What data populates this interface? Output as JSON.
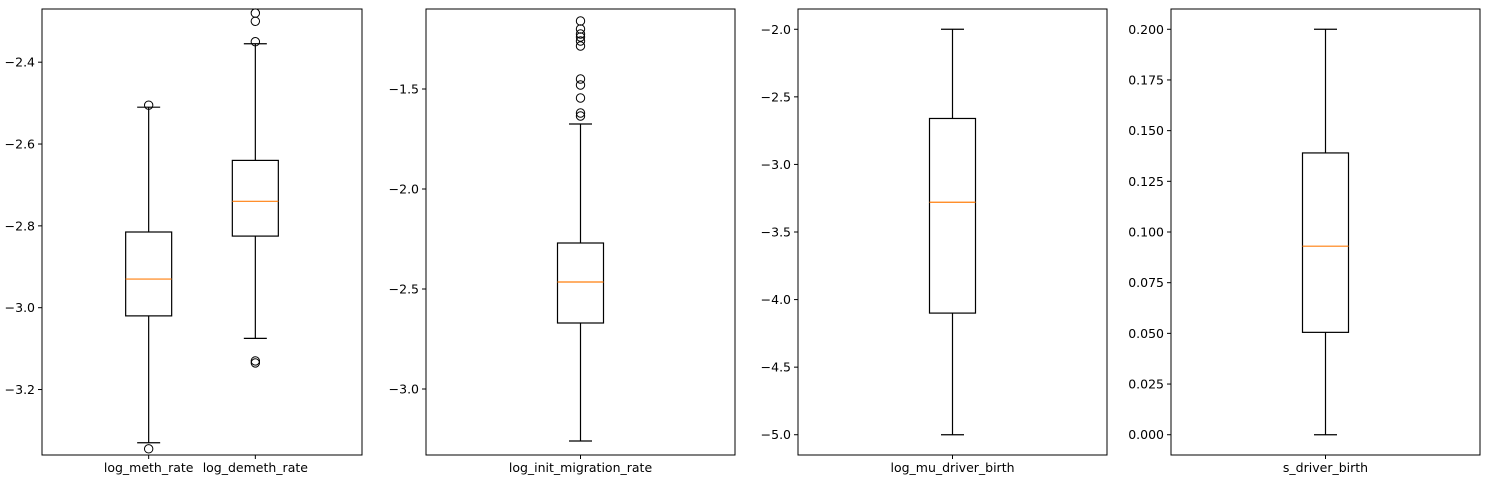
{
  "chart_data": [
    {
      "type": "box",
      "categories": [
        "log_meth_rate",
        "log_demeth_rate"
      ],
      "ylim": [
        -3.36,
        -2.27
      ],
      "yticks": [
        -3.2,
        -3.0,
        -2.8,
        -2.6,
        -2.4
      ],
      "ytick_labels": [
        "−3.2",
        "−3.0",
        "−2.8",
        "−2.6",
        "−2.4"
      ],
      "boxes": [
        {
          "whisker_low": -3.33,
          "q1": -3.02,
          "median": -2.93,
          "q3": -2.815,
          "whisker_high": -2.51,
          "outliers": [
            -3.345,
            -2.505
          ]
        },
        {
          "whisker_low": -3.075,
          "q1": -2.825,
          "median": -2.74,
          "q3": -2.64,
          "whisker_high": -2.355,
          "outliers": [
            -3.13,
            -3.135,
            -2.35,
            -2.3,
            -2.28
          ]
        }
      ]
    },
    {
      "type": "box",
      "categories": [
        "log_init_migration_rate"
      ],
      "ylim": [
        -3.33,
        -1.1
      ],
      "yticks": [
        -3.0,
        -2.5,
        -2.0,
        -1.5
      ],
      "ytick_labels": [
        "−3.0",
        "−2.5",
        "−2.0",
        "−1.5"
      ],
      "boxes": [
        {
          "whisker_low": -3.26,
          "q1": -2.67,
          "median": -2.465,
          "q3": -2.27,
          "whisker_high": -1.675,
          "outliers": [
            -1.635,
            -1.62,
            -1.545,
            -1.48,
            -1.45,
            -1.285,
            -1.26,
            -1.24,
            -1.225,
            -1.2,
            -1.16
          ]
        }
      ]
    },
    {
      "type": "box",
      "categories": [
        "log_mu_driver_birth"
      ],
      "ylim": [
        -5.15,
        -1.85
      ],
      "yticks": [
        -5.0,
        -4.5,
        -4.0,
        -3.5,
        -3.0,
        -2.5,
        -2.0
      ],
      "ytick_labels": [
        "−5.0",
        "−4.5",
        "−4.0",
        "−3.5",
        "−3.0",
        "−2.5",
        "−2.0"
      ],
      "boxes": [
        {
          "whisker_low": -5.0,
          "q1": -4.1,
          "median": -3.28,
          "q3": -2.66,
          "whisker_high": -2.0,
          "outliers": []
        }
      ]
    },
    {
      "type": "box",
      "categories": [
        "s_driver_birth"
      ],
      "ylim": [
        -0.01,
        0.21
      ],
      "yticks": [
        0.0,
        0.025,
        0.05,
        0.075,
        0.1,
        0.125,
        0.15,
        0.175,
        0.2
      ],
      "ytick_labels": [
        "0.000",
        "0.025",
        "0.050",
        "0.075",
        "0.100",
        "0.125",
        "0.150",
        "0.175",
        "0.200"
      ],
      "boxes": [
        {
          "whisker_low": 0.0,
          "q1": 0.0505,
          "median": 0.093,
          "q3": 0.139,
          "whisker_high": 0.2,
          "outliers": []
        }
      ]
    }
  ],
  "colors": {
    "median": "#ff7f0e",
    "box": "#000000",
    "background": "#ffffff"
  }
}
